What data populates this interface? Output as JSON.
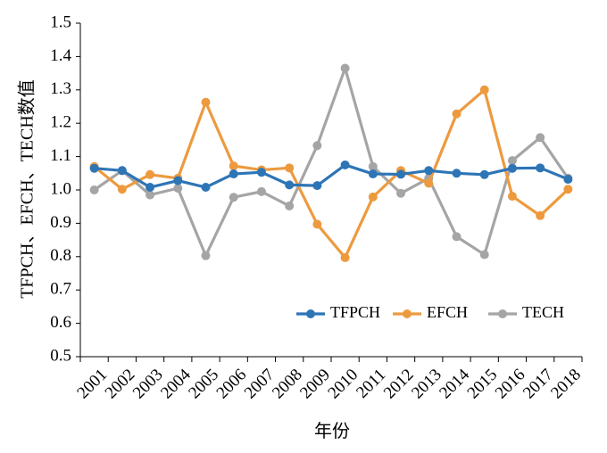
{
  "chart_data": {
    "type": "line",
    "xlabel": "年份",
    "ylabel": "TFPCH、EFCH、TECH数值",
    "ylim": [
      0.5,
      1.5
    ],
    "yticks": [
      "0.5",
      "0.6",
      "0.7",
      "0.8",
      "0.9",
      "1.0",
      "1.1",
      "1.2",
      "1.3",
      "1.4",
      "1.5"
    ],
    "categories": [
      "2001",
      "2002",
      "2003",
      "2004",
      "2005",
      "2006",
      "2007",
      "2008",
      "2009",
      "2010",
      "2011",
      "2012",
      "2013",
      "2014",
      "2015",
      "2016",
      "2017",
      "2018"
    ],
    "grid": false,
    "legend_position": "bottom-right",
    "series": [
      {
        "name": "TFPCH",
        "color": "#2E75B6",
        "values": [
          1.065,
          1.058,
          1.008,
          1.028,
          1.008,
          1.048,
          1.053,
          1.015,
          1.013,
          1.075,
          1.048,
          1.047,
          1.058,
          1.05,
          1.046,
          1.065,
          1.066,
          1.032
        ]
      },
      {
        "name": "EFCH",
        "color": "#ED9A3F",
        "values": [
          1.07,
          1.002,
          1.046,
          1.035,
          1.263,
          1.072,
          1.06,
          1.066,
          0.897,
          0.797,
          0.979,
          1.058,
          1.02,
          1.228,
          1.3,
          0.981,
          0.923,
          1.002
        ]
      },
      {
        "name": "TECH",
        "color": "#A5A5A5",
        "values": [
          1.0,
          1.058,
          0.985,
          1.005,
          0.803,
          0.978,
          0.995,
          0.952,
          1.133,
          1.365,
          1.07,
          0.99,
          1.035,
          0.86,
          0.806,
          1.088,
          1.157,
          1.035
        ]
      }
    ]
  }
}
